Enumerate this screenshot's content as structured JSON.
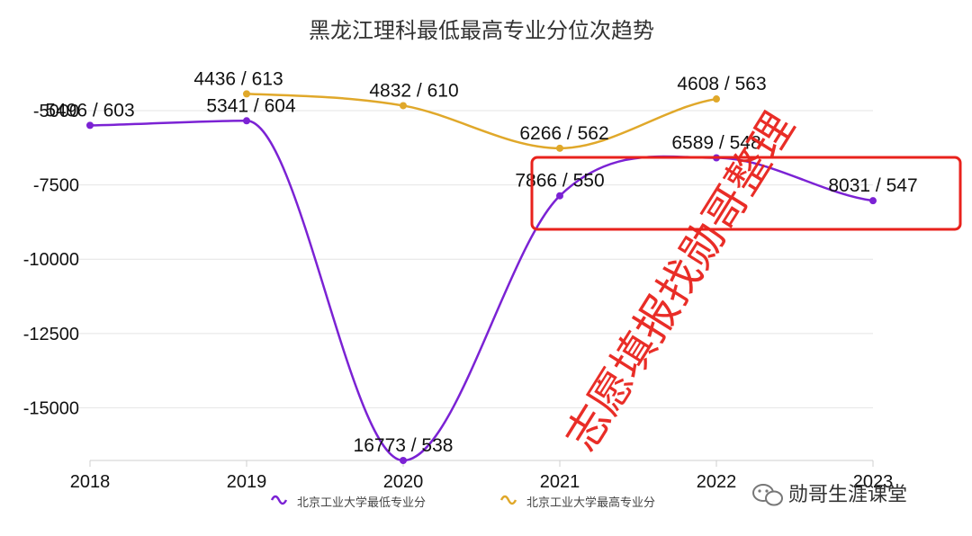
{
  "chart_data": {
    "type": "line",
    "title": "黑龙江理科最低最高专业分位次趋势",
    "categories": [
      "2018",
      "2019",
      "2020",
      "2021",
      "2022",
      "2023"
    ],
    "y_ticks": [
      "-5000",
      "-7500",
      "-10000",
      "-12500",
      "-15000"
    ],
    "ylim": [
      -16773,
      -5000
    ],
    "smooth": true,
    "grid": true,
    "legend_position": "bottom",
    "series": [
      {
        "name": "北京工业大学最低专业分",
        "color": "#7b22d4",
        "values": [
          -5496,
          -5341,
          -16773,
          -7866,
          -6589,
          -8031
        ],
        "labels": [
          "5496 / 603",
          "5341 / 604",
          "16773 / 538",
          "7866 / 550",
          "6589 / 548",
          "8031 / 547"
        ]
      },
      {
        "name": "北京工业大学最高专业分",
        "color": "#e0a82a",
        "values": [
          null,
          -4436,
          -4832,
          -6266,
          -4608,
          null
        ],
        "labels": [
          "",
          "4436 / 613",
          "4832 / 610",
          "6266 / 562",
          "4608 / 563",
          ""
        ]
      }
    ],
    "highlight_color": "#e8221c"
  },
  "watermark": "志愿填报找勋哥整理",
  "brand": {
    "text": "勋哥生涯课堂",
    "icon": "wechat-icon"
  }
}
